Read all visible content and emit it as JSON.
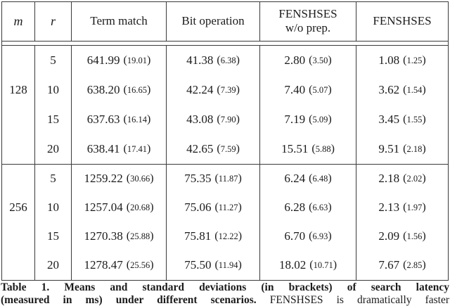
{
  "table": {
    "headers": {
      "m": "m",
      "r": "r",
      "term": "Term match",
      "bit": "Bit operation",
      "wo_line1": "FENSHSES",
      "wo_line2": "w/o prep.",
      "fen": "FENSHSES"
    },
    "groups": [
      {
        "m": "128",
        "rows": [
          {
            "r": "5",
            "term": {
              "mean": "641.99",
              "std": "19.01"
            },
            "bit": {
              "mean": "41.38",
              "std": "6.38"
            },
            "wo": {
              "mean": "2.80",
              "std": "3.50"
            },
            "fen": {
              "mean": "1.08",
              "std": "1.25"
            }
          },
          {
            "r": "10",
            "term": {
              "mean": "638.20",
              "std": "16.65"
            },
            "bit": {
              "mean": "42.24",
              "std": "7.39"
            },
            "wo": {
              "mean": "7.40",
              "std": "5.07"
            },
            "fen": {
              "mean": "3.62",
              "std": "1.54"
            }
          },
          {
            "r": "15",
            "term": {
              "mean": "637.63",
              "std": "16.14"
            },
            "bit": {
              "mean": "43.08",
              "std": "7.90"
            },
            "wo": {
              "mean": "7.19",
              "std": "5.09"
            },
            "fen": {
              "mean": "3.45",
              "std": "1.55"
            }
          },
          {
            "r": "20",
            "term": {
              "mean": "638.41",
              "std": "17.41"
            },
            "bit": {
              "mean": "42.65",
              "std": "7.59"
            },
            "wo": {
              "mean": "15.51",
              "std": "5.88"
            },
            "fen": {
              "mean": "9.51",
              "std": "2.18"
            }
          }
        ]
      },
      {
        "m": "256",
        "rows": [
          {
            "r": "5",
            "term": {
              "mean": "1259.22",
              "std": "30.66"
            },
            "bit": {
              "mean": "75.35",
              "std": "11.87"
            },
            "wo": {
              "mean": "6.24",
              "std": "6.48"
            },
            "fen": {
              "mean": "2.18",
              "std": "2.02"
            }
          },
          {
            "r": "10",
            "term": {
              "mean": "1257.04",
              "std": "20.68"
            },
            "bit": {
              "mean": "75.06",
              "std": "11.27"
            },
            "wo": {
              "mean": "6.28",
              "std": "6.63"
            },
            "fen": {
              "mean": "2.13",
              "std": "1.97"
            }
          },
          {
            "r": "15",
            "term": {
              "mean": "1270.38",
              "std": "25.88"
            },
            "bit": {
              "mean": "75.81",
              "std": "12.22"
            },
            "wo": {
              "mean": "6.70",
              "std": "6.93"
            },
            "fen": {
              "mean": "2.09",
              "std": "1.56"
            }
          },
          {
            "r": "20",
            "term": {
              "mean": "1278.47",
              "std": "25.56"
            },
            "bit": {
              "mean": "75.50",
              "std": "11.94"
            },
            "wo": {
              "mean": "18.02",
              "std": "10.71"
            },
            "fen": {
              "mean": "7.67",
              "std": "2.85"
            }
          }
        ]
      }
    ]
  },
  "caption": {
    "line1_bold": "Table 1. Means and standard deviations (in brackets) of search latency",
    "line2_bold": "(measured in ms) under different scenarios.",
    "line2_regular": "FENSHSES is dramatically faster"
  }
}
